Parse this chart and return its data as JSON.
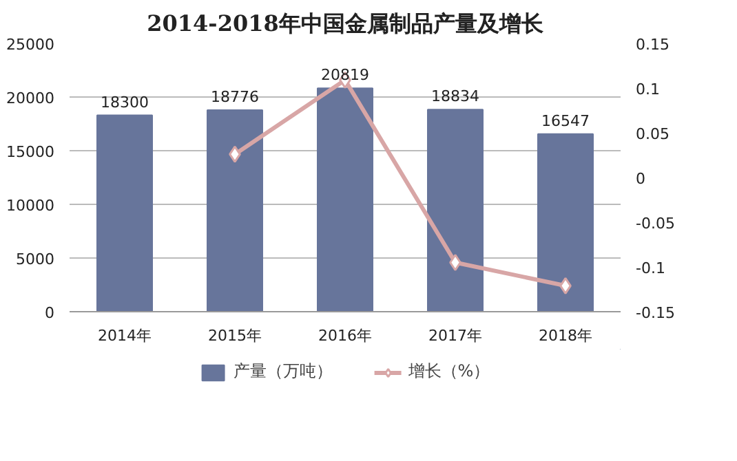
{
  "chart_data": {
    "type": "bar",
    "title": "2014-2018年中国金属制品产量及增长",
    "categories": [
      "2014年",
      "2015年",
      "2016年",
      "2017年",
      "2018年"
    ],
    "series": [
      {
        "name": "产量（万吨）",
        "color": "#67759b",
        "values": [
          18300,
          18776,
          20819,
          18834,
          16547
        ],
        "value_labels": [
          "18300",
          "18776",
          "20819",
          "18834",
          "16547"
        ]
      },
      {
        "name": "增长（%）",
        "type": "line",
        "axis": "y2",
        "color": "#d8a6a6",
        "marker": "diamond",
        "values": [
          null,
          0.026,
          0.109,
          -0.095,
          -0.121
        ]
      }
    ],
    "ylim": [
      0,
      25000
    ],
    "yticks": [
      0,
      5000,
      10000,
      15000,
      20000,
      25000
    ],
    "y2lim": [
      -0.15,
      0.15
    ],
    "y2ticks": [
      -0.15,
      -0.1,
      -0.05,
      0,
      0.05,
      0.1,
      0.15
    ],
    "grid": "y",
    "legend": "bottom"
  }
}
